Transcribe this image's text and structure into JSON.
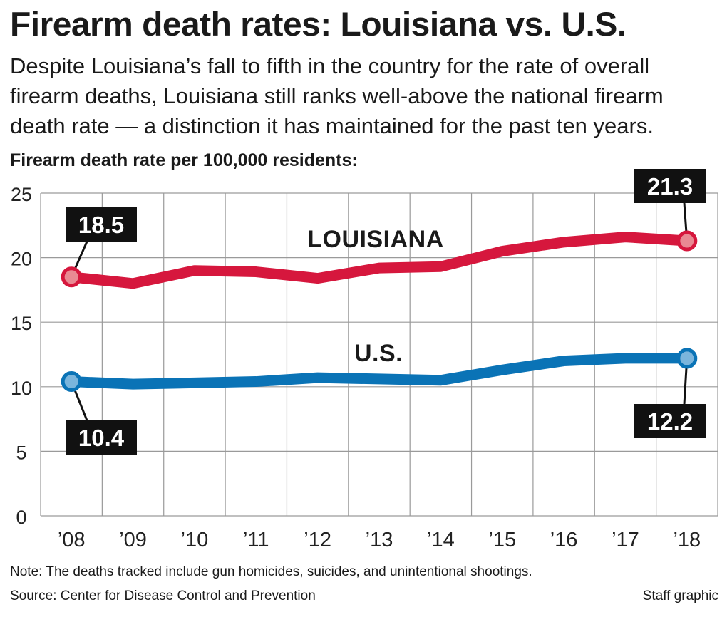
{
  "header": {
    "title": "Firearm death rates: Louisiana vs. U.S.",
    "subtitle": "Despite Louisiana’s fall to fifth in the country for the rate of overall firearm deaths, Louisiana still ranks well-above the national firearm death rate — a distinction it has maintained for the past ten years.",
    "unit_label": "Firearm death rate per 100,000 residents:"
  },
  "chart_data": {
    "type": "line",
    "title": "Firearm death rates: Louisiana vs. U.S.",
    "ylabel": "Firearm death rate per 100,000 residents",
    "xlabel": "",
    "categories": [
      "’08",
      "’09",
      "’10",
      "’11",
      "’12",
      "’13",
      "’14",
      "’15",
      "’16",
      "’17",
      "’18"
    ],
    "ylim": [
      0,
      25
    ],
    "yticks": [
      0,
      5,
      10,
      15,
      20,
      25
    ],
    "grid": true,
    "series": [
      {
        "name": "LOUISIANA",
        "color": "#d6173d",
        "marker_color": "#e98a93",
        "values": [
          18.5,
          18.0,
          19.0,
          18.9,
          18.4,
          19.2,
          19.3,
          20.5,
          21.2,
          21.6,
          21.3
        ],
        "callouts": [
          {
            "index": 0,
            "text": "18.5"
          },
          {
            "index": 10,
            "text": "21.3"
          }
        ]
      },
      {
        "name": "U.S.",
        "color": "#0a73b6",
        "marker_color": "#7bb5dc",
        "values": [
          10.4,
          10.2,
          10.3,
          10.4,
          10.7,
          10.6,
          10.5,
          11.3,
          12.0,
          12.2,
          12.2
        ],
        "callouts": [
          {
            "index": 0,
            "text": "10.4"
          },
          {
            "index": 10,
            "text": "12.2"
          }
        ]
      }
    ]
  },
  "footer": {
    "note": "Note: The deaths tracked include gun homicides, suicides, and unintentional shootings.",
    "source": "Source: Center for Disease Control and Prevention",
    "credit": "Staff graphic"
  }
}
